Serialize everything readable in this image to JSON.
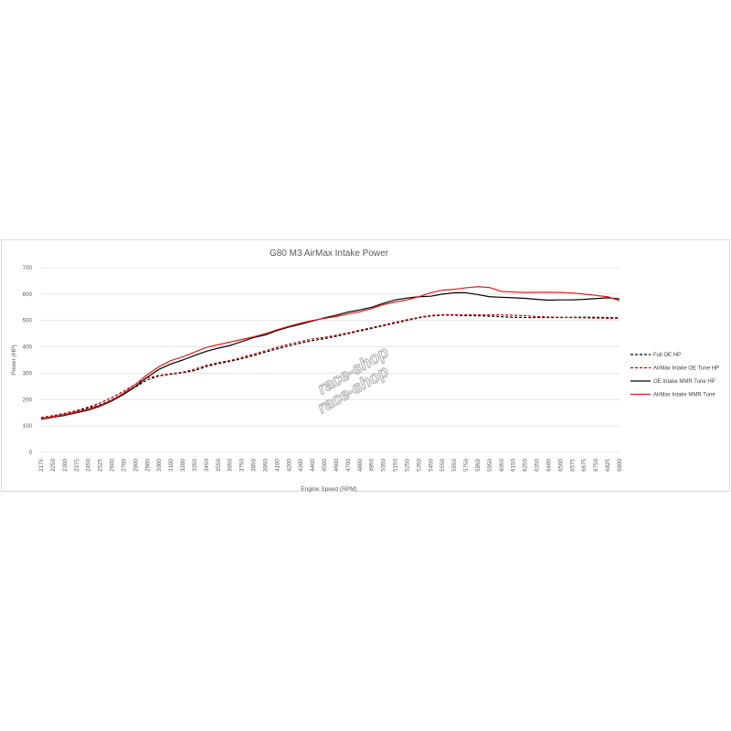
{
  "chart_data": {
    "type": "line",
    "title": "G80 M3 AirMax Intake Power",
    "xlabel": "Engine Speed (RPM)",
    "ylabel": "Power (HP)",
    "ylim": [
      0,
      700
    ],
    "yticks": [
      0,
      100,
      200,
      300,
      400,
      500,
      600,
      700
    ],
    "grid": "horizontal",
    "legend_position": "right",
    "x_tick_labels": [
      "2175",
      "2250",
      "2300",
      "2375",
      "2450",
      "2525",
      "2600",
      "2700",
      "2800",
      "2900",
      "3000",
      "3100",
      "3200",
      "3350",
      "3450",
      "3550",
      "3650",
      "3750",
      "3850",
      "3950",
      "4100",
      "4200",
      "4300",
      "4400",
      "4500",
      "4600",
      "4700",
      "4800",
      "4950",
      "5050",
      "5150",
      "5250",
      "5350",
      "5450",
      "5550",
      "5650",
      "5750",
      "5850",
      "5950",
      "6050",
      "6150",
      "6250",
      "6350",
      "6400",
      "6500",
      "6575",
      "6675",
      "6750",
      "6825",
      "6900"
    ],
    "series": [
      {
        "name": "Full OE HP",
        "color": "#000000",
        "dash": true,
        "values": [
          130,
          137,
          145,
          155,
          168,
          180,
          200,
          222,
          248,
          275,
          290,
          296,
          302,
          310,
          325,
          336,
          345,
          355,
          367,
          380,
          392,
          404,
          414,
          424,
          431,
          440,
          450,
          460,
          470,
          480,
          490,
          500,
          510,
          517,
          520,
          520,
          518,
          518,
          516,
          514,
          512,
          511,
          511,
          511,
          511,
          512,
          512,
          512,
          511,
          510
        ]
      },
      {
        "name": "AirMax Intake OE Tune HP",
        "color": "#c00000",
        "dash": true,
        "values": [
          132,
          139,
          148,
          158,
          172,
          187,
          208,
          232,
          258,
          283,
          292,
          298,
          304,
          315,
          330,
          340,
          348,
          360,
          372,
          385,
          398,
          410,
          420,
          430,
          436,
          444,
          453,
          463,
          473,
          483,
          493,
          503,
          512,
          519,
          522,
          522,
          521,
          521,
          521,
          521,
          520,
          518,
          515,
          513,
          512,
          511,
          510,
          509,
          508,
          508
        ]
      },
      {
        "name": "OE Intake MMR Tune HP",
        "color": "#000000",
        "dash": false,
        "values": [
          125,
          133,
          140,
          150,
          160,
          175,
          195,
          220,
          250,
          285,
          315,
          335,
          350,
          367,
          383,
          395,
          405,
          420,
          435,
          445,
          462,
          475,
          486,
          498,
          510,
          520,
          532,
          540,
          550,
          565,
          578,
          585,
          590,
          592,
          600,
          605,
          605,
          598,
          590,
          588,
          586,
          584,
          580,
          577,
          578,
          578,
          580,
          583,
          586,
          582
        ]
      },
      {
        "name": "AirMax Intake MMR Tune",
        "color": "#e31a1c",
        "dash": false,
        "values": [
          127,
          135,
          143,
          153,
          163,
          178,
          198,
          225,
          258,
          295,
          325,
          348,
          362,
          380,
          398,
          408,
          418,
          428,
          438,
          450,
          465,
          478,
          490,
          500,
          508,
          515,
          525,
          533,
          545,
          560,
          570,
          578,
          590,
          605,
          615,
          618,
          624,
          628,
          625,
          610,
          608,
          606,
          607,
          607,
          606,
          604,
          600,
          595,
          590,
          575
        ]
      }
    ]
  }
}
